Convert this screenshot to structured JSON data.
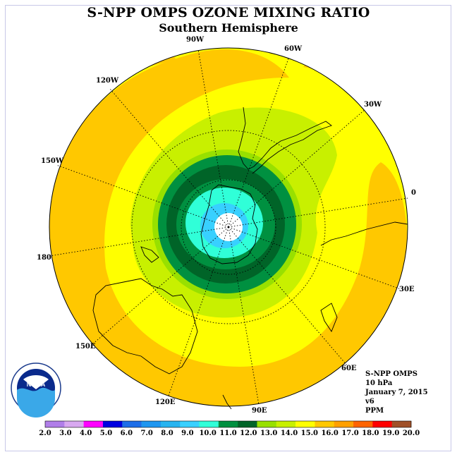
{
  "title": "S-NPP OMPS OZONE MIXING RATIO",
  "subtitle": "Southern Hemisphere",
  "longitude_labels": [
    "90W",
    "60W",
    "30W",
    "0",
    "30E",
    "60E",
    "90E",
    "120E",
    "150E",
    "180",
    "150W",
    "120W"
  ],
  "info": {
    "instrument": "S-NPP OMPS",
    "level": "10 hPa",
    "date": "January 7, 2015",
    "version": "v6",
    "units": "PPM"
  },
  "logo": {
    "text": "NOAA",
    "ring_text": "NATIONAL OCEANIC AND ATMOSPHERIC ADMINISTRATION · U.S. DEPARTMENT OF COMMERCE"
  },
  "colorbar": {
    "labels": [
      "2.0",
      "3.0",
      "4.0",
      "5.0",
      "6.0",
      "7.0",
      "8.0",
      "9.0",
      "10.0",
      "11.0",
      "12.0",
      "13.0",
      "14.0",
      "15.0",
      "16.0",
      "17.0",
      "18.0",
      "19.0",
      "20.0"
    ],
    "colors": [
      "#b07ee8",
      "#d8a8f0",
      "#ff00ff",
      "#0000e0",
      "#1e6ee8",
      "#1e96f0",
      "#28b4f0",
      "#38d0ff",
      "#30ffd8",
      "#009040",
      "#006428",
      "#98e000",
      "#c8f000",
      "#ffff00",
      "#ffc800",
      "#ffa000",
      "#ff6400",
      "#ff0000",
      "#a05028"
    ]
  },
  "colors": {
    "yellow": "#ffff00",
    "orange": "#ffc800",
    "lightgreen": "#c8f000",
    "green": "#98e000",
    "darkgreen": "#006428",
    "medgreen": "#009040",
    "aqua": "#30ffd8",
    "cyan": "#38d0ff"
  }
}
